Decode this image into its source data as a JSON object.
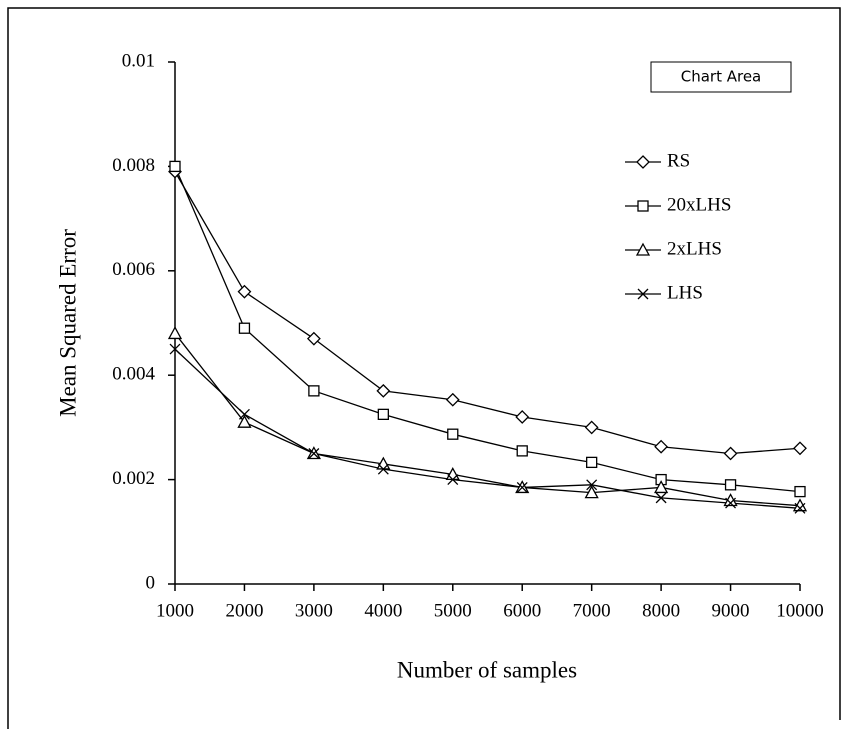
{
  "chart_data": {
    "type": "line",
    "x_label": "Number of samples",
    "y_label": "Mean Squared Error",
    "tooltip": "Chart Area",
    "x": [
      1000,
      2000,
      3000,
      4000,
      5000,
      6000,
      7000,
      8000,
      9000,
      10000
    ],
    "xlim": [
      1000,
      10000
    ],
    "xticks": [
      1000,
      2000,
      3000,
      4000,
      5000,
      6000,
      7000,
      8000,
      9000,
      10000
    ],
    "ylim": [
      0,
      0.01
    ],
    "yticks": [
      0,
      0.002,
      0.004,
      0.006,
      0.008,
      0.01
    ],
    "grid": false,
    "legend": "upper right",
    "series": [
      {
        "name": "RS",
        "color": "#000000",
        "marker": "diamond",
        "values": [
          0.0079,
          0.0056,
          0.0047,
          0.0037,
          0.00353,
          0.0032,
          0.003,
          0.00263,
          0.0025,
          0.0026
        ]
      },
      {
        "name": "20xLHS",
        "color": "#000000",
        "marker": "square",
        "values": [
          0.008,
          0.0049,
          0.0037,
          0.00325,
          0.00287,
          0.00255,
          0.00233,
          0.002,
          0.0019,
          0.00177
        ]
      },
      {
        "name": "2xLHS",
        "color": "#000000",
        "marker": "triangle",
        "values": [
          0.0048,
          0.0031,
          0.0025,
          0.0023,
          0.0021,
          0.00185,
          0.00175,
          0.00185,
          0.0016,
          0.0015
        ]
      },
      {
        "name": "LHS",
        "color": "#000000",
        "marker": "x",
        "values": [
          0.0045,
          0.00325,
          0.0025,
          0.0022,
          0.002,
          0.00185,
          0.0019,
          0.00165,
          0.00155,
          0.00145
        ]
      }
    ]
  }
}
